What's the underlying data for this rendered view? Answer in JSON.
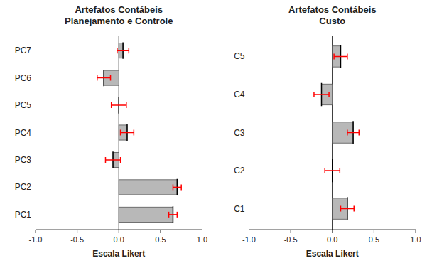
{
  "chart_data": [
    {
      "type": "bar",
      "orientation": "horizontal",
      "title": "Artefatos Contábeis\nPlanejamento e Controle",
      "x_label": "Escala Likert",
      "categories": [
        "PC1",
        "PC2",
        "PC3",
        "PC4",
        "PC5",
        "PC6",
        "PC7"
      ],
      "values": [
        0.65,
        0.7,
        -0.07,
        0.1,
        0.0,
        -0.18,
        0.05
      ],
      "error": {
        "values": [
          0.05,
          0.05,
          0.09,
          0.08,
          0.09,
          0.08,
          0.07
        ],
        "color": "red"
      },
      "color": "#b8b8b8",
      "xlim": [
        -1.0,
        1.0
      ],
      "xticks": [
        {
          "value": -1.0,
          "label": "-1.0"
        },
        -0.5,
        {
          "value": 0.0,
          "label": "0.0"
        },
        0.5,
        {
          "value": 1.0,
          "label": "1.0"
        }
      ],
      "grid": false
    },
    {
      "type": "bar",
      "orientation": "horizontal",
      "title": "Artefatos Contábeis\nCusto",
      "x_label": "Escala Likert",
      "categories": [
        "C1",
        "C2",
        "C3",
        "C4",
        "C5"
      ],
      "values": [
        0.18,
        0.0,
        0.25,
        -0.13,
        0.1
      ],
      "error": {
        "values": [
          0.08,
          0.09,
          0.07,
          0.09,
          0.08
        ],
        "color": "red"
      },
      "color": "#b8b8b8",
      "xlim": [
        -1.0,
        1.0
      ],
      "xticks": [
        {
          "value": -1.0,
          "label": "-1.0"
        },
        -0.5,
        {
          "value": 0.0,
          "label": "0.0"
        },
        0.5,
        {
          "value": 1.0,
          "label": "1.0"
        }
      ],
      "grid": false
    }
  ]
}
